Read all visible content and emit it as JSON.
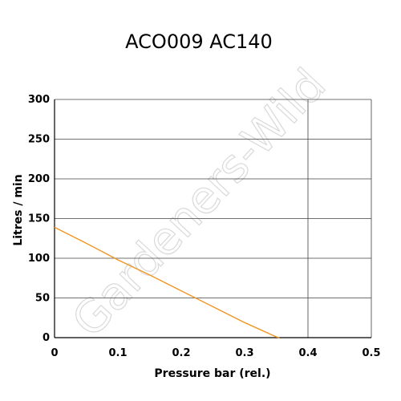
{
  "chart_data": {
    "type": "line",
    "title": "ACO009 AC140",
    "xlabel": "Pressure bar (rel.)",
    "ylabel": "Litres / min",
    "xlim": [
      0,
      0.5
    ],
    "ylim": [
      0,
      300
    ],
    "x_ticks": [
      "0",
      "0.1",
      "0.2",
      "0.3",
      "0.4",
      "0.5"
    ],
    "y_ticks": [
      "0",
      "50",
      "100",
      "150",
      "200",
      "250",
      "300"
    ],
    "grid": true,
    "vertical_gridlines_at": [
      0.4
    ],
    "series": [
      {
        "color": "#f0961e",
        "points": [
          [
            0,
            139
          ],
          [
            0.05,
            119
          ],
          [
            0.1,
            98
          ],
          [
            0.15,
            79
          ],
          [
            0.2,
            59
          ],
          [
            0.25,
            39
          ],
          [
            0.3,
            19
          ],
          [
            0.35,
            1
          ],
          [
            0.355,
            0
          ]
        ]
      }
    ]
  },
  "watermark": {
    "text": "Gardeners-Wild",
    "color": "#d9d9d9"
  },
  "colors": {
    "axis": "#000000",
    "grid": "#404040",
    "line": "#f0961e",
    "watermark": "#d9d9d9"
  }
}
